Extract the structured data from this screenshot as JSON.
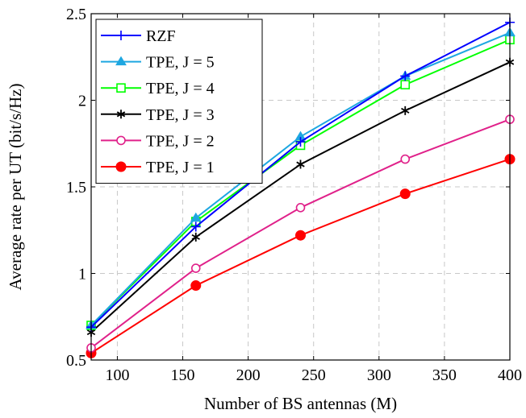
{
  "chart_data": {
    "type": "line",
    "xlabel": "Number of BS antennas (M)",
    "ylabel": "Average rate per UT (bit/s/Hz)",
    "xlim": [
      80,
      400
    ],
    "ylim": [
      0.5,
      2.5
    ],
    "xticks": [
      100,
      150,
      200,
      250,
      300,
      350,
      400
    ],
    "yticks": [
      0.5,
      1,
      1.5,
      2,
      2.5
    ],
    "xtick_labels": [
      "100",
      "150",
      "200",
      "250",
      "300",
      "350",
      "400"
    ],
    "ytick_labels": [
      "0.5",
      "1",
      "1.5",
      "2",
      "2.5"
    ],
    "grid": true,
    "legend_position": "top-left",
    "x": [
      80,
      160,
      240,
      320,
      400
    ],
    "series": [
      {
        "name": "RZF",
        "values": [
          0.69,
          1.27,
          1.76,
          2.14,
          2.45
        ],
        "color": "#0000ff",
        "marker": "plus"
      },
      {
        "name": "TPE, J = 5",
        "values": [
          0.7,
          1.32,
          1.79,
          2.14,
          2.39
        ],
        "color": "#1ea7e1",
        "marker": "triangle"
      },
      {
        "name": "TPE, J = 4",
        "values": [
          0.7,
          1.3,
          1.74,
          2.09,
          2.35
        ],
        "color": "#00ff00",
        "marker": "square"
      },
      {
        "name": "TPE, J = 3",
        "values": [
          0.66,
          1.21,
          1.63,
          1.94,
          2.22
        ],
        "color": "#000000",
        "marker": "asterisk"
      },
      {
        "name": "TPE, J = 2",
        "values": [
          0.57,
          1.03,
          1.38,
          1.66,
          1.89
        ],
        "color": "#e0218a",
        "marker": "circle-open"
      },
      {
        "name": "TPE, J = 1",
        "values": [
          0.54,
          0.93,
          1.22,
          1.46,
          1.66
        ],
        "color": "#ff0000",
        "marker": "circle-filled"
      }
    ]
  }
}
